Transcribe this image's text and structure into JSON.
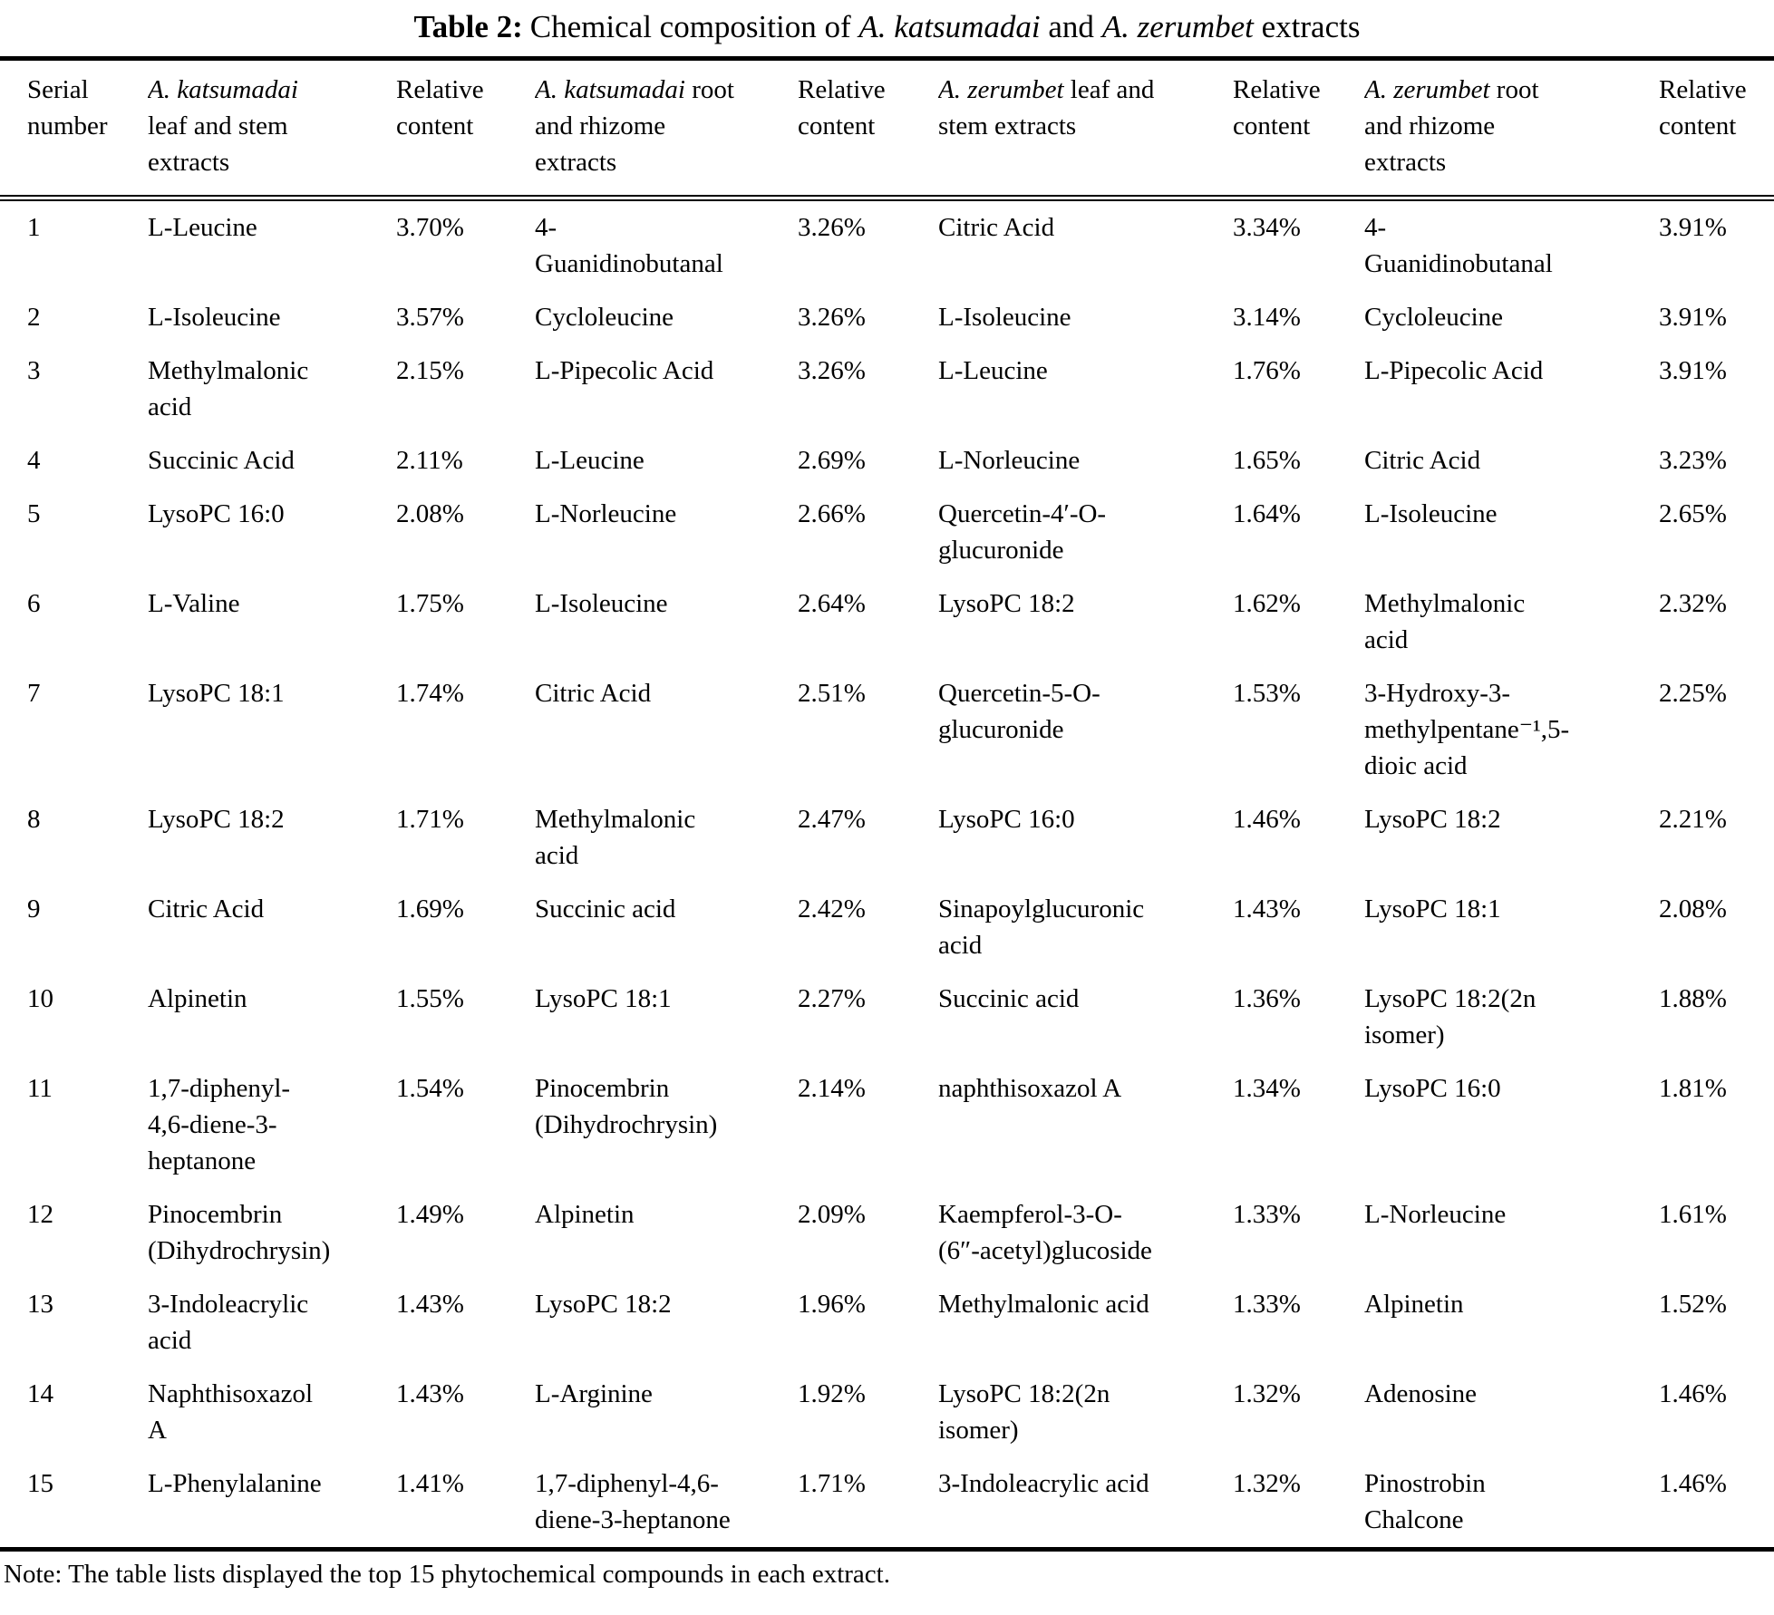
{
  "title": {
    "parts": [
      {
        "text": "Table 2:",
        "style": "bold"
      },
      {
        "text": "Chemical composition of ",
        "style": "normal"
      },
      {
        "text": "A. katsumadai",
        "style": "italic"
      },
      {
        "text": " and ",
        "style": "normal"
      },
      {
        "text": "A. zerumbet",
        "style": "italic"
      },
      {
        "text": " extracts",
        "style": "normal"
      }
    ]
  },
  "table": {
    "headers": [
      {
        "italic": "",
        "text": "Serial\nnumber"
      },
      {
        "italic": "A. katsumadai",
        "text": "\nleaf and stem\nextracts"
      },
      {
        "italic": "",
        "text": "Relative\ncontent"
      },
      {
        "italic": "A. katsumadai",
        "text": " root\nand rhizome\nextracts"
      },
      {
        "italic": "",
        "text": "Relative\ncontent"
      },
      {
        "italic": "A. zerumbet",
        "text": " leaf and\nstem extracts"
      },
      {
        "italic": "",
        "text": "Relative\ncontent"
      },
      {
        "italic": "A. zerumbet",
        "text": " root\nand rhizome\nextracts"
      },
      {
        "italic": "",
        "text": "Relative\ncontent"
      }
    ],
    "rows": [
      [
        "1",
        "L-Leucine",
        "3.70%",
        "4-\nGuanidinobutanal",
        "3.26%",
        "Citric Acid",
        "3.34%",
        "4-\nGuanidinobutanal",
        "3.91%"
      ],
      [
        "2",
        "L-Isoleucine",
        "3.57%",
        "Cycloleucine",
        "3.26%",
        "L-Isoleucine",
        "3.14%",
        "Cycloleucine",
        "3.91%"
      ],
      [
        "3",
        "Methylmalonic\nacid",
        "2.15%",
        "L-Pipecolic Acid",
        "3.26%",
        "L-Leucine",
        "1.76%",
        "L-Pipecolic Acid",
        "3.91%"
      ],
      [
        "4",
        "Succinic Acid",
        "2.11%",
        "L-Leucine",
        "2.69%",
        "L-Norleucine",
        "1.65%",
        "Citric Acid",
        "3.23%"
      ],
      [
        "5",
        "LysoPC 16:0",
        "2.08%",
        "L-Norleucine",
        "2.66%",
        "Quercetin-4′-O-\nglucuronide",
        "1.64%",
        "L-Isoleucine",
        "2.65%"
      ],
      [
        "6",
        "L-Valine",
        "1.75%",
        "L-Isoleucine",
        "2.64%",
        "LysoPC 18:2",
        "1.62%",
        "Methylmalonic\nacid",
        "2.32%"
      ],
      [
        "7",
        "LysoPC 18:1",
        "1.74%",
        "Citric Acid",
        "2.51%",
        "Quercetin-5-O-\nglucuronide",
        "1.53%",
        "3-Hydroxy-3-\nmethylpentane⁻¹,5-\ndioic acid",
        "2.25%"
      ],
      [
        "8",
        "LysoPC 18:2",
        "1.71%",
        "Methylmalonic\nacid",
        "2.47%",
        "LysoPC 16:0",
        "1.46%",
        "LysoPC 18:2",
        "2.21%"
      ],
      [
        "9",
        "Citric Acid",
        "1.69%",
        "Succinic acid",
        "2.42%",
        "Sinapoylglucuronic\nacid",
        "1.43%",
        "LysoPC 18:1",
        "2.08%"
      ],
      [
        "10",
        "Alpinetin",
        "1.55%",
        "LysoPC 18:1",
        "2.27%",
        "Succinic acid",
        "1.36%",
        "LysoPC 18:2(2n\nisomer)",
        "1.88%"
      ],
      [
        "11",
        "1,7-diphenyl-\n4,6-diene-3-\nheptanone",
        "1.54%",
        "Pinocembrin\n(Dihydrochrysin)",
        "2.14%",
        "naphthisoxazol A",
        "1.34%",
        "LysoPC 16:0",
        "1.81%"
      ],
      [
        "12",
        "Pinocembrin\n(Dihydrochrysin)",
        "1.49%",
        "Alpinetin",
        "2.09%",
        "Kaempferol-3-O-\n(6″-acetyl)glucoside",
        "1.33%",
        "L-Norleucine",
        "1.61%"
      ],
      [
        "13",
        "3-Indoleacrylic\nacid",
        "1.43%",
        "LysoPC 18:2",
        "1.96%",
        "Methylmalonic acid",
        "1.33%",
        "Alpinetin",
        "1.52%"
      ],
      [
        "14",
        "Naphthisoxazol\nA",
        "1.43%",
        "L-Arginine",
        "1.92%",
        "LysoPC 18:2(2n\nisomer)",
        "1.32%",
        "Adenosine",
        "1.46%"
      ],
      [
        "15",
        "L-Phenylalanine",
        "1.41%",
        "1,7-diphenyl-4,6-\ndiene-3-heptanone",
        "1.71%",
        "3-Indoleacrylic acid",
        "1.32%",
        "Pinostrobin\nChalcone",
        "1.46%"
      ]
    ]
  },
  "note": "Note: The table lists displayed the top 15 phytochemical compounds in each extract."
}
